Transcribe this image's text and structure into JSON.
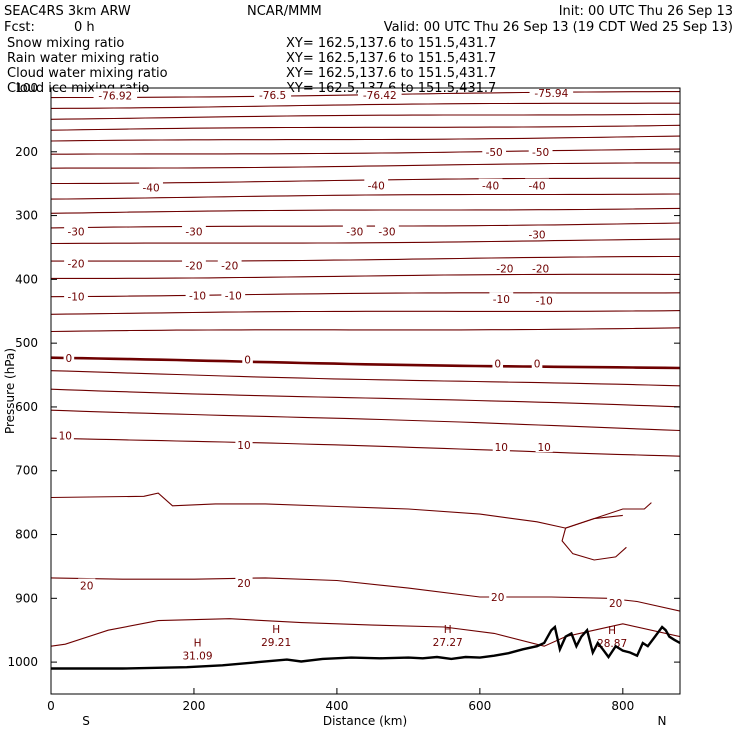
{
  "header": {
    "model": "SEAC4RS  3km ARW",
    "org": "NCAR/MMM",
    "init": "Init: 00 UTC Thu 26 Sep 13",
    "fcst_label": "Fcst:",
    "fcst_value": "0 h",
    "valid": "Valid: 00 UTC Thu 26 Sep 13 (19 CDT Wed 25 Sep 13)"
  },
  "fields": [
    {
      "name": "Snow mixing ratio",
      "color": "#000000",
      "xy": "XY=  162.5,137.6 to 151.5,431.7"
    },
    {
      "name": "Rain water mixing ratio",
      "color": "#dd0000",
      "xy": "XY=  162.5,137.6 to 151.5,431.7"
    },
    {
      "name": "Cloud water mixing ratio",
      "color": "#1a1acc",
      "xy": "XY=  162.5,137.6 to 151.5,431.7"
    },
    {
      "name": "Cloud ice mixing ratio",
      "color": "#000000",
      "xy": "XY=  162.5,137.6 to 151.5,431.7"
    }
  ],
  "chart_data": {
    "type": "line",
    "xlabel": "Distance (km)",
    "ylabel": "Pressure (hPa)",
    "xlim": [
      0,
      880
    ],
    "ylim": [
      1050,
      100
    ],
    "x_ticks": [
      0,
      200,
      400,
      600,
      800
    ],
    "y_ticks": [
      100,
      200,
      300,
      400,
      500,
      600,
      700,
      800,
      900,
      1000
    ],
    "y_tick_labels": [
      "100",
      "200",
      "300",
      "400",
      "500",
      "600",
      "700",
      "800",
      "900",
      "1000"
    ],
    "end_labels": [
      "S",
      "N"
    ],
    "contour_color": "#6e0000",
    "temperature_levels": [
      {
        "p0": 115,
        "p1": 106
      },
      {
        "p0": 131,
        "p1": 123
      },
      {
        "p0": 148,
        "p1": 140
      },
      {
        "p0": 166,
        "p1": 158
      },
      {
        "p0": 184,
        "p1": 176
      },
      {
        "p0": 205,
        "p1": 197
      },
      {
        "p0": 226,
        "p1": 218
      },
      {
        "p0": 249,
        "p1": 241
      },
      {
        "p0": 273,
        "p1": 265
      },
      {
        "p0": 296,
        "p1": 288
      },
      {
        "p0": 320,
        "p1": 312
      },
      {
        "p0": 345,
        "p1": 338
      },
      {
        "p0": 372,
        "p1": 365
      },
      {
        "p0": 398,
        "p1": 392
      },
      {
        "p0": 426,
        "p1": 420
      },
      {
        "p0": 454,
        "p1": 448
      },
      {
        "p0": 482,
        "p1": 476
      },
      {
        "p0": 524,
        "p1": 540,
        "bold": true
      },
      {
        "p0": 544,
        "p1": 568
      },
      {
        "p0": 572,
        "p1": 600
      },
      {
        "p0": 604,
        "p1": 636
      },
      {
        "p0": 648,
        "p1": 676
      }
    ],
    "contour_labels": [
      {
        "text": "-76.92",
        "x": 90,
        "p": 112
      },
      {
        "text": "-76.5",
        "x": 310,
        "p": 111
      },
      {
        "text": "-76.42",
        "x": 460,
        "p": 111
      },
      {
        "text": "-75.94",
        "x": 700,
        "p": 108
      },
      {
        "text": "-50",
        "x": 620,
        "p": 200
      },
      {
        "text": "-50",
        "x": 685,
        "p": 200
      },
      {
        "text": "-40",
        "x": 140,
        "p": 256
      },
      {
        "text": "-40",
        "x": 455,
        "p": 253
      },
      {
        "text": "-40",
        "x": 615,
        "p": 253
      },
      {
        "text": "-40",
        "x": 680,
        "p": 253
      },
      {
        "text": "-30",
        "x": 35,
        "p": 325
      },
      {
        "text": "-30",
        "x": 200,
        "p": 325
      },
      {
        "text": "-30",
        "x": 425,
        "p": 325
      },
      {
        "text": "-30",
        "x": 470,
        "p": 325
      },
      {
        "text": "-30",
        "x": 680,
        "p": 330
      },
      {
        "text": "-20",
        "x": 35,
        "p": 375
      },
      {
        "text": "-20",
        "x": 200,
        "p": 378
      },
      {
        "text": "-20",
        "x": 250,
        "p": 378
      },
      {
        "text": "-20",
        "x": 635,
        "p": 383
      },
      {
        "text": "-20",
        "x": 685,
        "p": 383
      },
      {
        "text": "-10",
        "x": 35,
        "p": 427
      },
      {
        "text": "-10",
        "x": 205,
        "p": 425
      },
      {
        "text": "-10",
        "x": 255,
        "p": 425
      },
      {
        "text": "-10",
        "x": 630,
        "p": 431
      },
      {
        "text": "-10",
        "x": 690,
        "p": 433
      },
      {
        "text": "0",
        "x": 25,
        "p": 523
      },
      {
        "text": "0",
        "x": 275,
        "p": 526
      },
      {
        "text": "0",
        "x": 625,
        "p": 532
      },
      {
        "text": "0",
        "x": 680,
        "p": 532
      },
      {
        "text": "10",
        "x": 20,
        "p": 645
      },
      {
        "text": "10",
        "x": 270,
        "p": 660
      },
      {
        "text": "10",
        "x": 630,
        "p": 663
      },
      {
        "text": "10",
        "x": 690,
        "p": 663
      },
      {
        "text": "20",
        "x": 50,
        "p": 880
      },
      {
        "text": "20",
        "x": 270,
        "p": 876
      },
      {
        "text": "20",
        "x": 625,
        "p": 898
      },
      {
        "text": "20",
        "x": 790,
        "p": 907
      }
    ],
    "highs": [
      {
        "label": "H",
        "value": "31.09",
        "x": 205,
        "p": 991
      },
      {
        "label": "H",
        "value": "29.21",
        "x": 315,
        "p": 970
      },
      {
        "label": "H",
        "value": "27.27",
        "x": 555,
        "p": 970
      },
      {
        "label": "H",
        "value": "28.87",
        "x": 785,
        "p": 972
      }
    ],
    "terrain": {
      "x": [
        0,
        100,
        190,
        240,
        290,
        310,
        330,
        350,
        380,
        420,
        460,
        500,
        520,
        540,
        560,
        580,
        600,
        620,
        640,
        660,
        680,
        690,
        700,
        705,
        712,
        720,
        728,
        735,
        742,
        750,
        758,
        765,
        772,
        780,
        790,
        800,
        810,
        820,
        828,
        835,
        845,
        855,
        860,
        865,
        872,
        880
      ],
      "p": [
        1010,
        1010,
        1008,
        1005,
        1000,
        998,
        996,
        999,
        995,
        993,
        994,
        993,
        994,
        992,
        995,
        992,
        993,
        990,
        986,
        980,
        975,
        970,
        950,
        945,
        980,
        960,
        955,
        975,
        960,
        950,
        985,
        970,
        980,
        992,
        975,
        982,
        985,
        990,
        970,
        975,
        960,
        945,
        950,
        960,
        965,
        970
      ]
    }
  }
}
